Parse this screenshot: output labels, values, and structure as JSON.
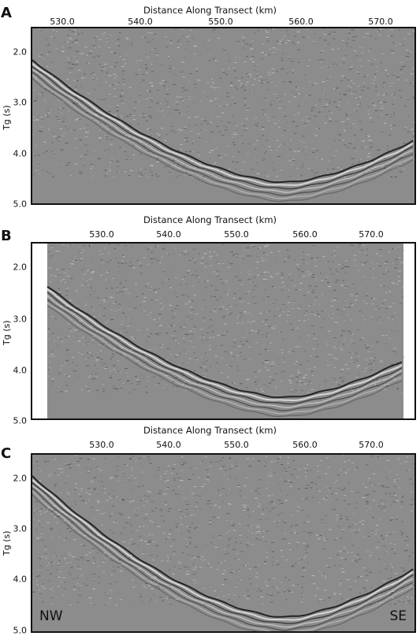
{
  "panels": [
    {
      "letter": "A",
      "xlabel": "Distance Along Transect (km)",
      "ylabel": "Tg (s)",
      "xticks": [
        "530.0",
        "540.0",
        "550.0",
        "560.0",
        "570.0"
      ],
      "yticks": [
        "2.0",
        "3.0",
        "4.0",
        "5.0"
      ],
      "data_coverage": "full"
    },
    {
      "letter": "B",
      "xlabel": "Distance Along Transect (km)",
      "ylabel": "Tg (s)",
      "xticks": [
        "530.0",
        "540.0",
        "550.0",
        "560.0",
        "570.0"
      ],
      "yticks": [
        "2.0",
        "3.0",
        "4.0",
        "5.0"
      ],
      "data_coverage": "partial"
    },
    {
      "letter": "C",
      "xlabel": "Distance Along Transect (km)",
      "ylabel": "Tg (s)",
      "xticks": [
        "530.0",
        "540.0",
        "550.0",
        "560.0",
        "570.0"
      ],
      "yticks": [
        "2.0",
        "3.0",
        "4.0",
        "5.0"
      ],
      "data_coverage": "full",
      "left_corner": "NW",
      "right_corner": "SE"
    }
  ],
  "colors": {
    "background": "#8c8c8c",
    "reflector_dark": "#1a1a1a",
    "reflector_light": "#e8e8e8",
    "frame": "#111111"
  }
}
